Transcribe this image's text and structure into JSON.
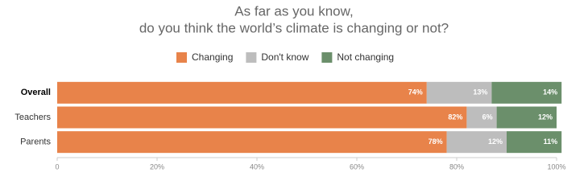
{
  "chart_data": {
    "type": "stacked-bar-horizontal",
    "title": [
      "As far as you know,",
      "do you think the world’s climate is changing or not?"
    ],
    "categories": [
      "Overall",
      "Teachers",
      "Parents"
    ],
    "series": [
      {
        "name": "Changing",
        "color": "#e8834a",
        "values": [
          74,
          82,
          78
        ],
        "value_labels": [
          "74%",
          "82%",
          "78%"
        ]
      },
      {
        "name": "Don't know",
        "color": "#bdbdbd",
        "values": [
          13,
          6,
          12
        ],
        "value_labels": [
          "13%",
          "6%",
          "12%"
        ]
      },
      {
        "name": "Not changing",
        "color": "#6b8f6b",
        "values": [
          14,
          12,
          11
        ],
        "value_labels": [
          "14%",
          "12%",
          "11%"
        ]
      }
    ],
    "xlim": [
      0,
      100
    ],
    "xticks": [
      0,
      {
        "value": 20,
        "label": "20%"
      },
      {
        "value": 40,
        "label": "40%"
      },
      {
        "value": 60,
        "label": "60%"
      },
      {
        "value": 80,
        "label": "80%"
      },
      {
        "value": 100,
        "label": "100%"
      }
    ],
    "legend": "top"
  }
}
